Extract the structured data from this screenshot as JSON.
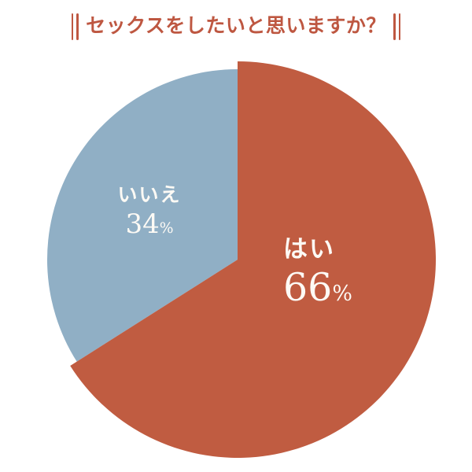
{
  "title": {
    "text": "セックスをしたいと思いますか？"
  },
  "colors": {
    "accent_terracotta": "#C05C41",
    "accent_blue": "#90AFC5",
    "title_text": "#BE5741",
    "slice_label_text": "#FDFAF5",
    "background": "#FFFFFF"
  },
  "chart_data": {
    "type": "pie",
    "title": "セックスをしたいと思いますか？",
    "direction": "clockwise",
    "start_angle_deg": 0,
    "legend": "none",
    "labels_inside": true,
    "center": [
      302,
      330
    ],
    "radii": [
      252,
      242
    ],
    "slices": [
      {
        "id": "yes",
        "label": "はい",
        "value": 66,
        "unit": "%",
        "color": "#C05C41"
      },
      {
        "id": "no",
        "label": "いいえ",
        "value": 34,
        "unit": "%",
        "color": "#90AFC5"
      }
    ]
  }
}
